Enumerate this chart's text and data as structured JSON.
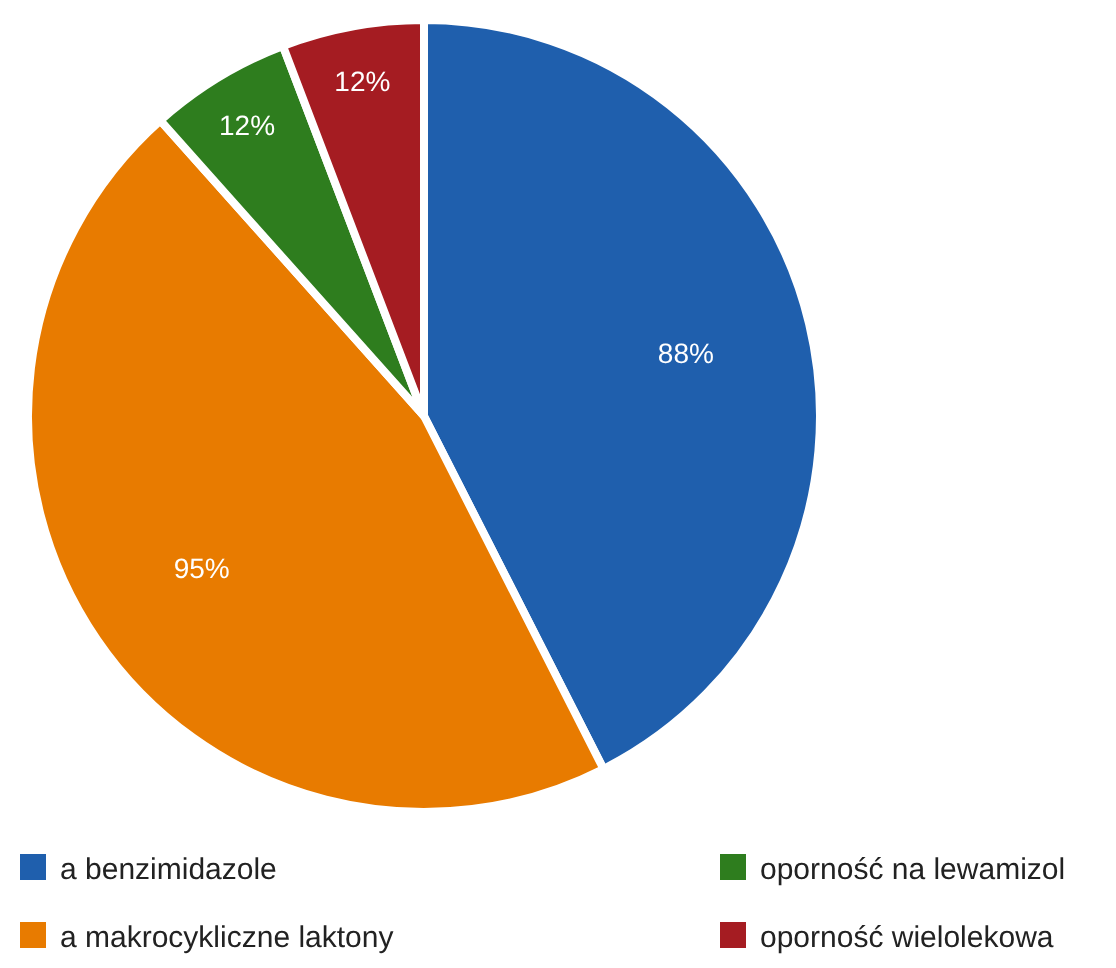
{
  "chart_data": {
    "type": "pie",
    "categories": [
      "a benzimidazole",
      "a makrocykliczne laktony",
      "oporność na lewamizol",
      "oporność wielolekowa"
    ],
    "values": [
      88,
      95,
      12,
      12
    ],
    "colors": [
      "#1f5fad",
      "#e87b00",
      "#2e7d1e",
      "#a51c22"
    ],
    "value_labels": [
      "88%",
      "95%",
      "12%",
      "12%"
    ],
    "legend": "bottom"
  }
}
